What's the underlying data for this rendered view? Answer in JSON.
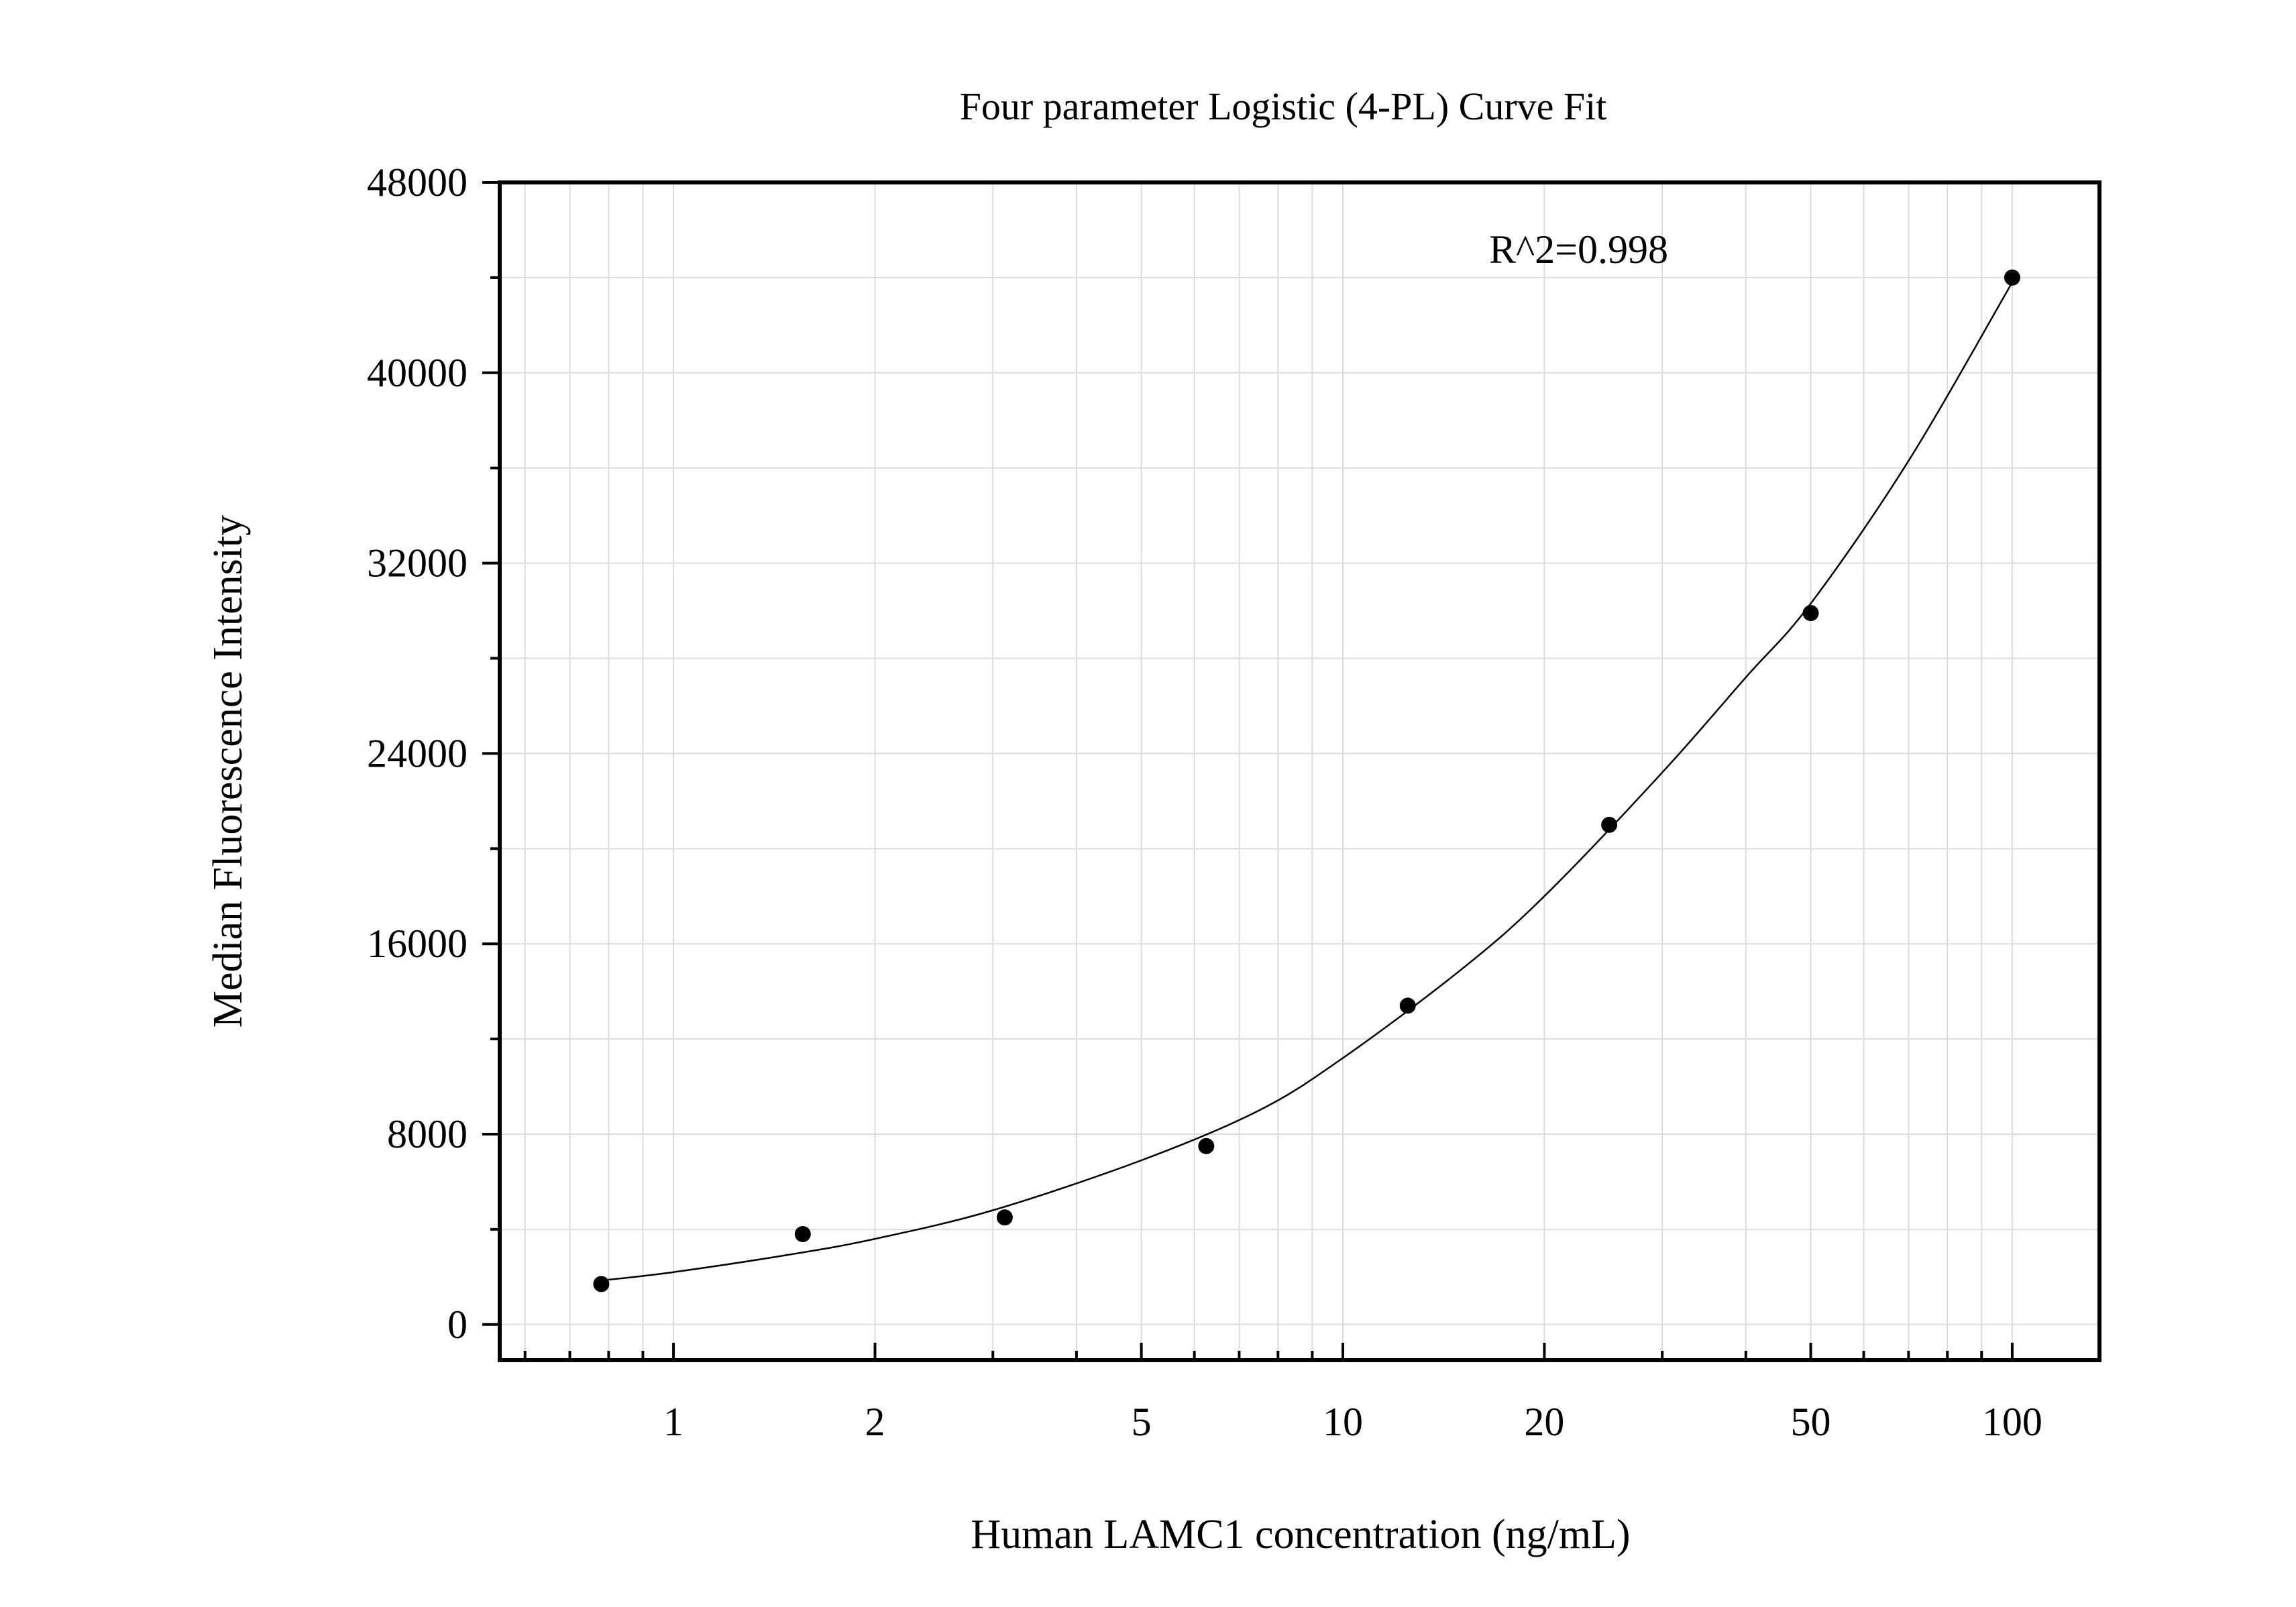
{
  "chart_data": {
    "type": "scatter",
    "title": "Four parameter Logistic (4-PL) Curve Fit",
    "xlabel": "Human LAMC1 concentration (ng/mL)",
    "ylabel": "Median Fluorescence Intensity",
    "x_scale": "log",
    "xlim": [
      0.55,
      135
    ],
    "ylim": [
      -1500,
      48000
    ],
    "x_ticks": [
      1,
      2,
      5,
      10,
      20,
      50,
      100
    ],
    "x_tick_labels": [
      "1",
      "2",
      "5",
      "10",
      "20",
      "50",
      "100"
    ],
    "y_ticks": [
      0,
      8000,
      16000,
      24000,
      32000,
      40000,
      48000
    ],
    "y_tick_labels": [
      "0",
      "8000",
      "16000",
      "24000",
      "32000",
      "40000",
      "48000"
    ],
    "grid": true,
    "annotation": "R^2=0.998",
    "series": [
      {
        "points": [
          {
            "x": 0.78,
            "y": 1700
          },
          {
            "x": 1.56,
            "y": 3800
          },
          {
            "x": 3.125,
            "y": 4500
          },
          {
            "x": 6.25,
            "y": 7500
          },
          {
            "x": 12.5,
            "y": 13400
          },
          {
            "x": 25,
            "y": 21000
          },
          {
            "x": 50,
            "y": 29900
          },
          {
            "x": 100,
            "y": 44000
          }
        ]
      }
    ],
    "fit_curve": {
      "x": [
        0.78,
        1.0,
        1.5,
        2.0,
        3.0,
        5.0,
        7.5,
        10,
        15,
        20,
        30,
        40,
        50,
        70,
        100
      ],
      "y": [
        1850,
        2200,
        2950,
        3600,
        4800,
        6900,
        9000,
        11200,
        14900,
        18000,
        23200,
        27200,
        30300,
        36300,
        43800
      ]
    }
  }
}
